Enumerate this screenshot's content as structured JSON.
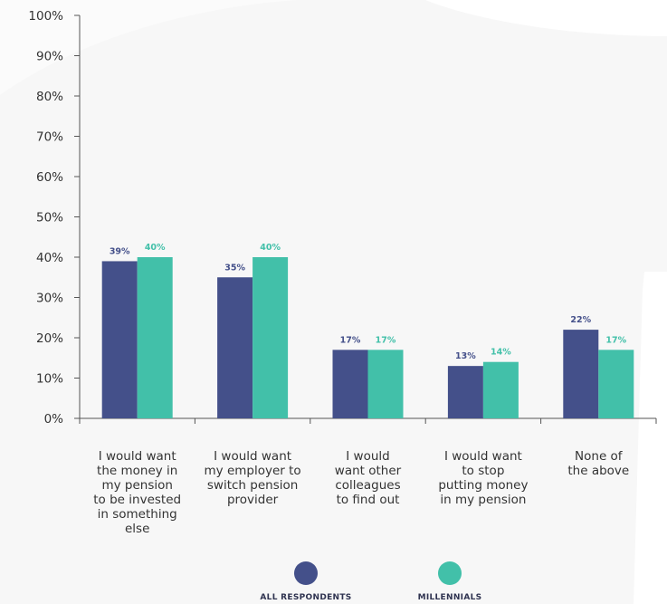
{
  "colors": {
    "all_respondents": "#44508a",
    "millennials": "#42c0a9",
    "axis": "#555555",
    "tick_text": "#333333"
  },
  "legend": {
    "series_1_label": "ALL RESPONDENTS",
    "series_2_label": "MILLENNIALS"
  },
  "chart_data": {
    "type": "bar",
    "title": "",
    "xlabel": "",
    "ylabel": "",
    "ylim": [
      0,
      100
    ],
    "y_ticks": [
      "0%",
      "10%",
      "20%",
      "30%",
      "40%",
      "50%",
      "60%",
      "70%",
      "80%",
      "90%",
      "100%"
    ],
    "grid": false,
    "legend_position": "bottom",
    "categories": [
      "I would want\nthe money in\nmy pension\nto be invested\nin something\nelse",
      "I would want\nmy employer to\nswitch pension\nprovider",
      "I would\nwant other\ncolleagues\nto find out",
      "I would want\nto stop\nputting money\nin my pension",
      "None of\nthe above"
    ],
    "series": [
      {
        "name": "ALL RESPONDENTS",
        "values": [
          39,
          35,
          17,
          13,
          22
        ],
        "labels": [
          "39%",
          "35%",
          "17%",
          "13%",
          "22%"
        ]
      },
      {
        "name": "MILLENNIALS",
        "values": [
          40,
          40,
          17,
          14,
          17
        ],
        "labels": [
          "40%",
          "40%",
          "17%",
          "14%",
          "17%"
        ]
      }
    ]
  }
}
